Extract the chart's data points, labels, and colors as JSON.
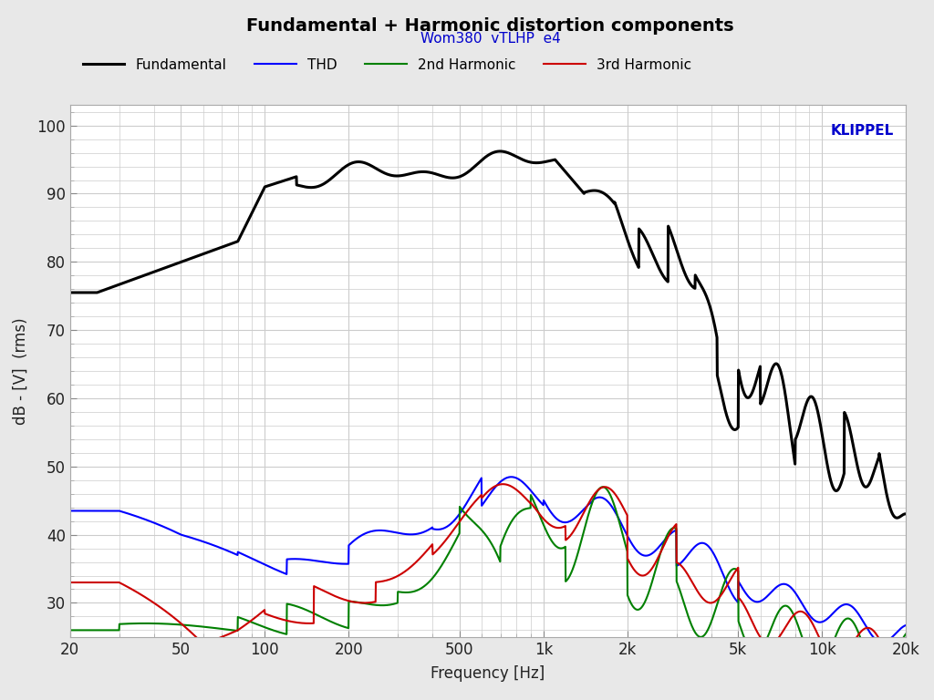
{
  "title": "Fundamental + Harmonic distortion components",
  "subtitle": "Wom380  vTLHP  e4",
  "xlabel": "Frequency [Hz]",
  "ylabel": "dB - [V]  (rms)",
  "klippel_text": "KLIPPEL",
  "xmin": 20,
  "xmax": 20000,
  "ymin": 25,
  "ymax": 103,
  "yticks": [
    30,
    40,
    50,
    60,
    70,
    80,
    90,
    100
  ],
  "xtick_labels": [
    "20",
    "50",
    "100",
    "200",
    "500",
    "1k",
    "2k",
    "5k",
    "10k",
    "20k"
  ],
  "xtick_values": [
    20,
    50,
    100,
    200,
    500,
    1000,
    2000,
    5000,
    10000,
    20000
  ],
  "legend": [
    {
      "label": "Fundamental",
      "color": "#000000",
      "lw": 2.2
    },
    {
      "label": "THD",
      "color": "#0000ff",
      "lw": 1.5
    },
    {
      "label": "2nd Harmonic",
      "color": "#008000",
      "lw": 1.5
    },
    {
      "label": "3rd Harmonic",
      "color": "#cc0000",
      "lw": 1.5
    }
  ],
  "bg_color": "#e8e8e8",
  "plot_bg_color": "#ffffff",
  "grid_color": "#cccccc",
  "title_color": "#000000",
  "subtitle_color": "#0000cc",
  "klippel_color": "#0000cc"
}
